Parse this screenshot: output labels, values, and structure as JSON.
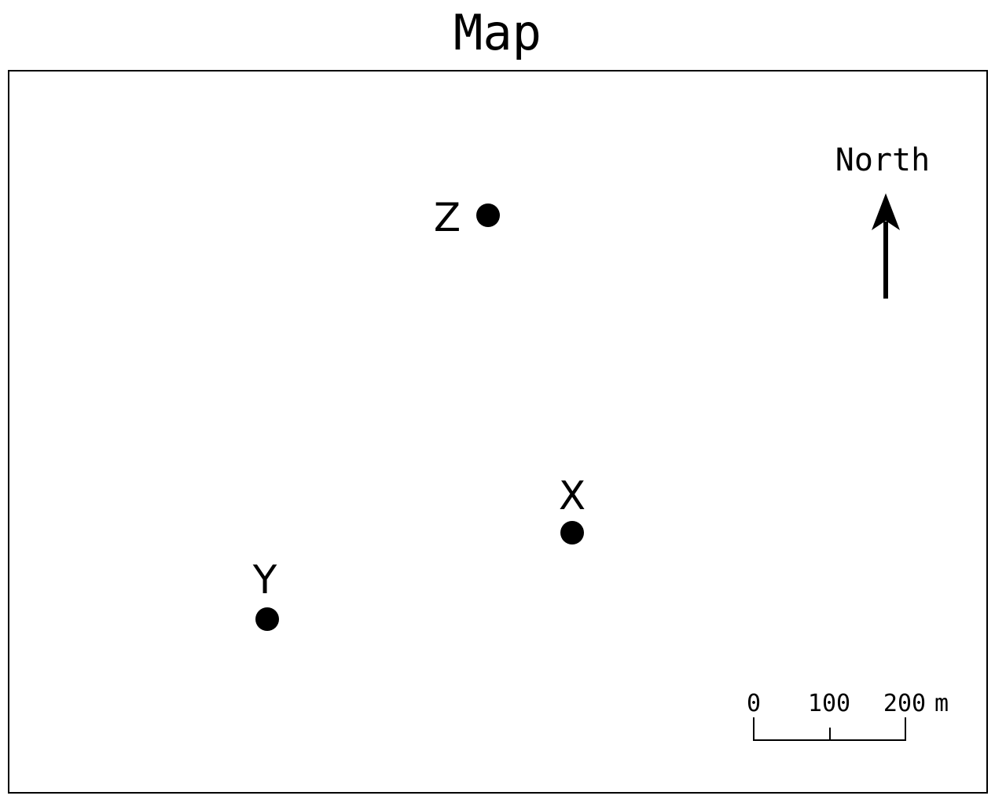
{
  "title": "Map",
  "north": {
    "label": "North"
  },
  "points": [
    {
      "label": "Z"
    },
    {
      "label": "X"
    },
    {
      "label": "Y"
    }
  ],
  "scale": {
    "ticks": [
      "0",
      "100",
      "200"
    ],
    "unit": "m"
  },
  "colors": {
    "ink": "#000000",
    "background": "#ffffff"
  }
}
